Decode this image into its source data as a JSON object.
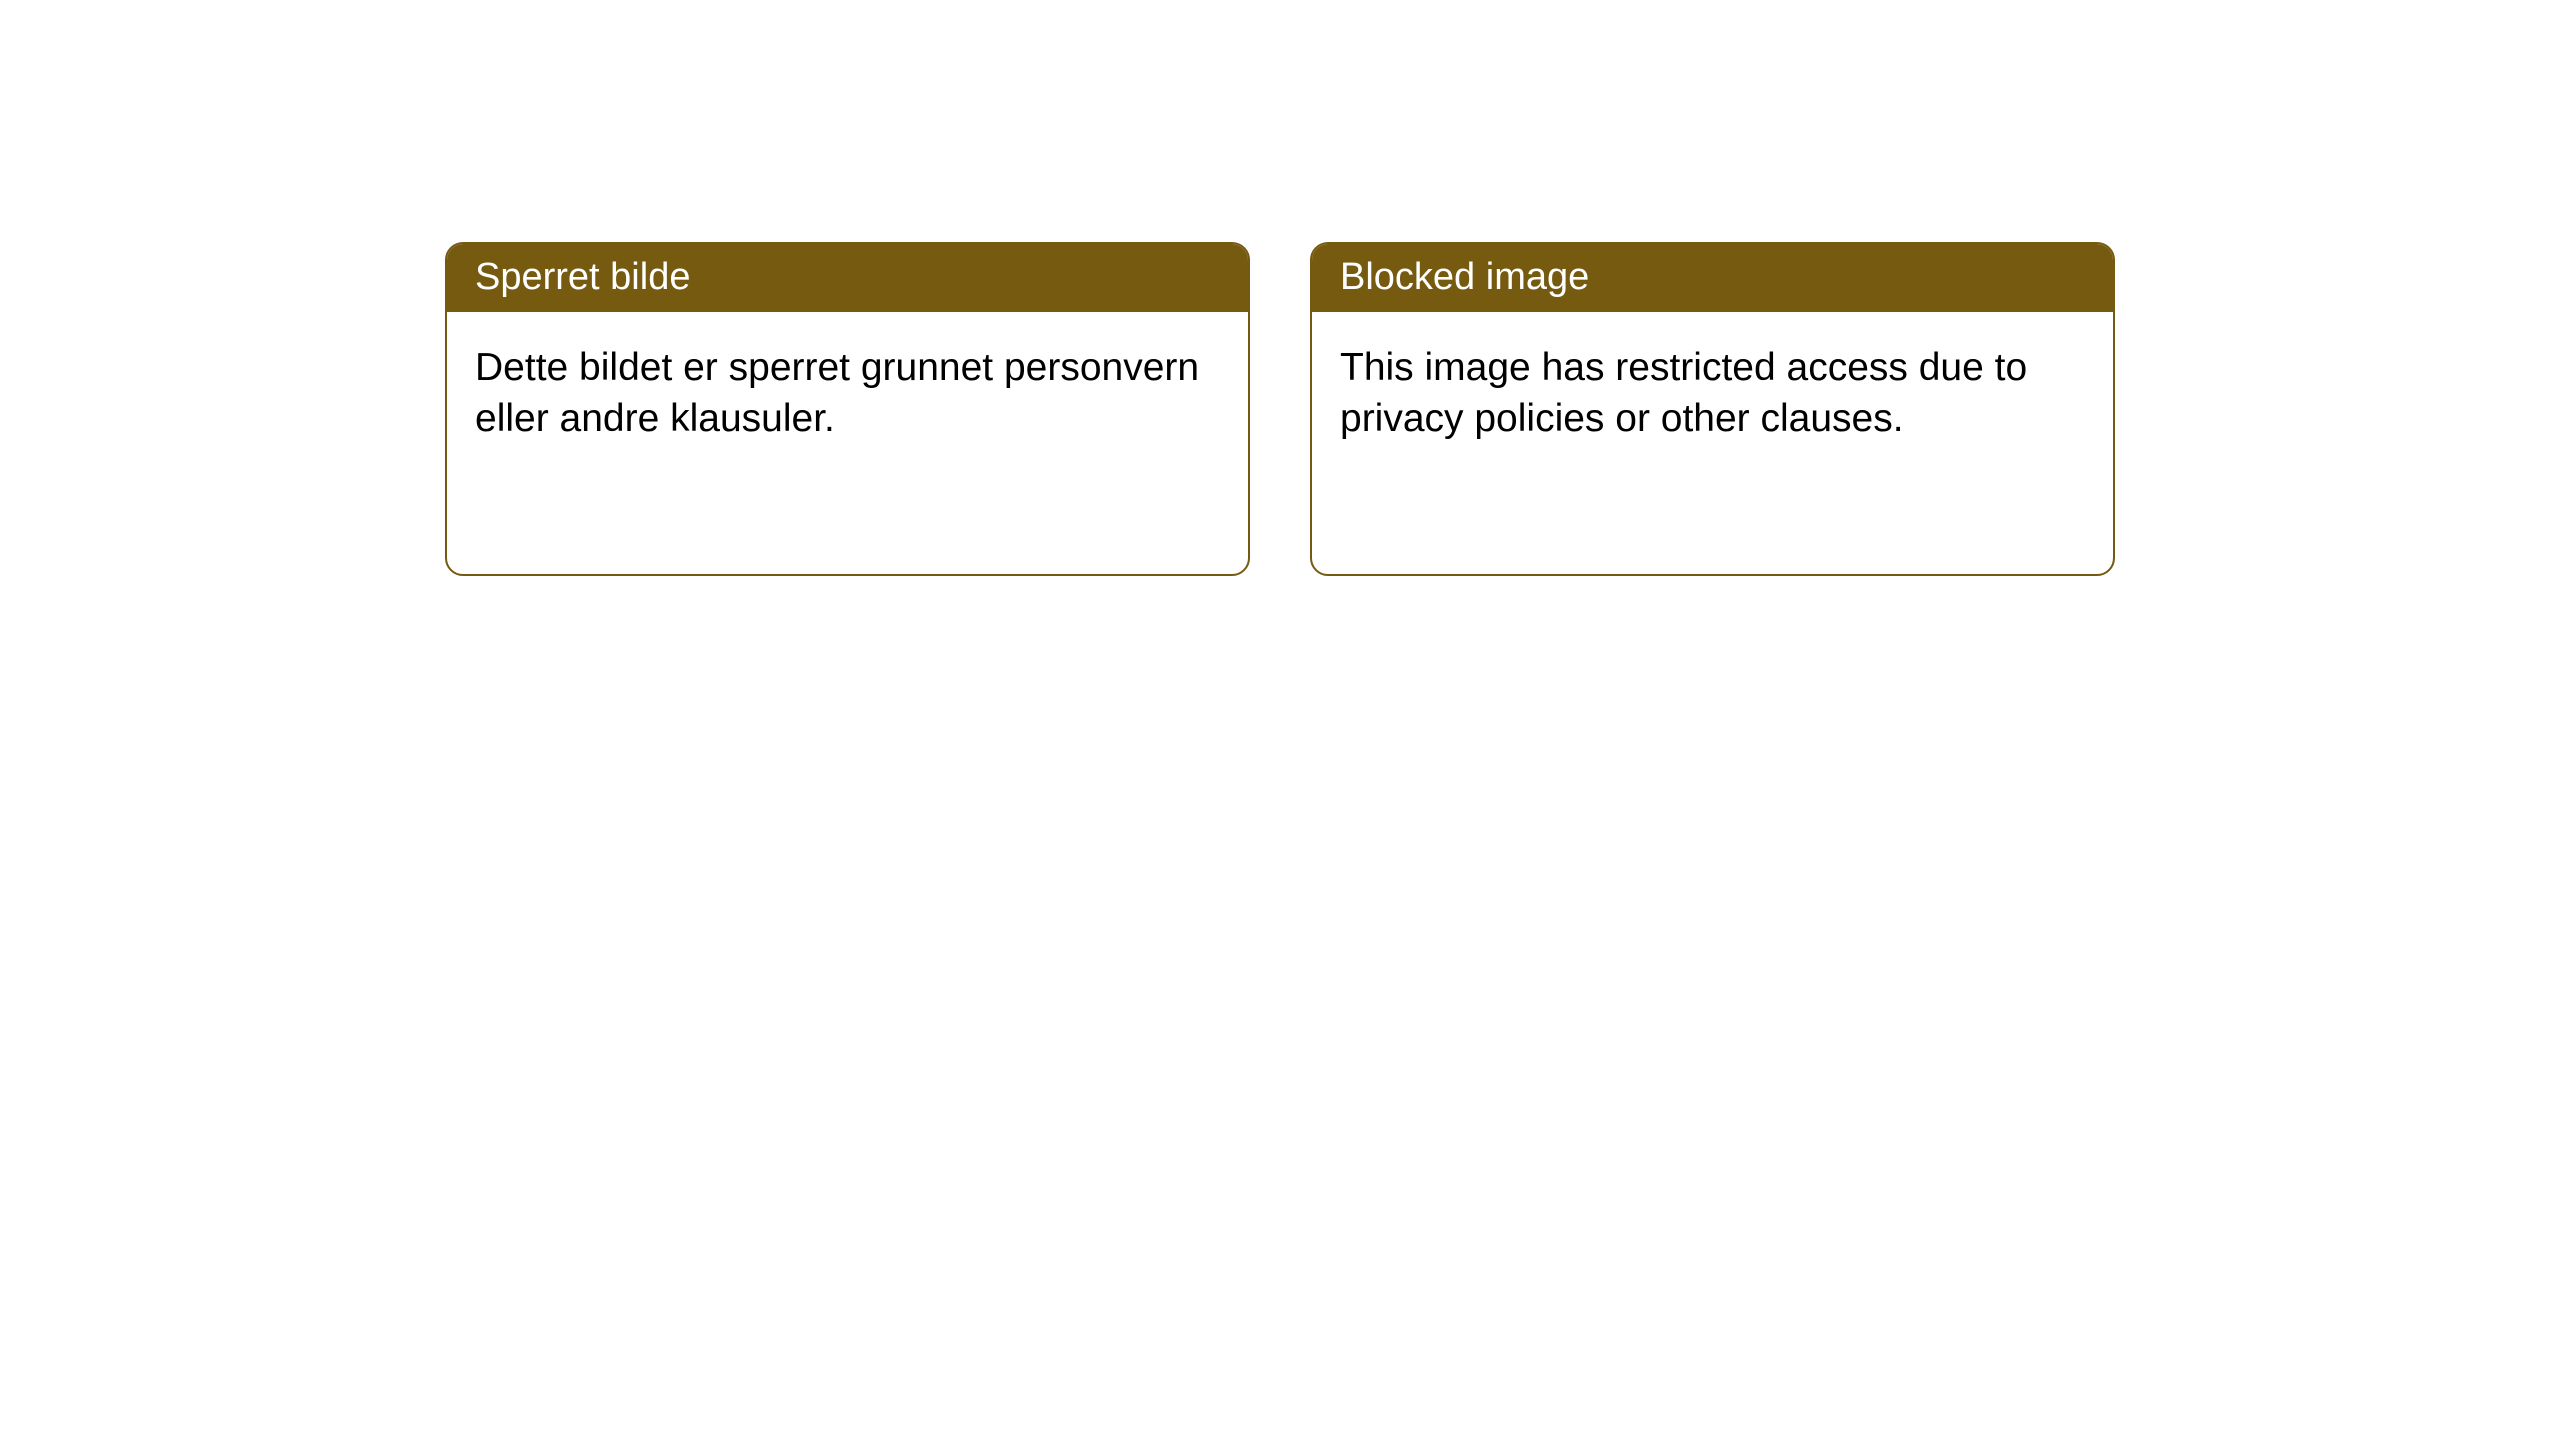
{
  "cards": [
    {
      "title": "Sperret bilde",
      "body": "Dette bildet er sperret grunnet personvern eller andre klausuler."
    },
    {
      "title": "Blocked image",
      "body": "This image has restricted access due to privacy policies or other clauses."
    }
  ],
  "styling": {
    "header_bg_color": "#755a10",
    "header_text_color": "#ffffff",
    "border_color": "#755a10",
    "body_text_color": "#000000",
    "card_bg_color": "#ffffff",
    "page_bg_color": "#ffffff",
    "header_fontsize": 38,
    "body_fontsize": 39,
    "border_radius": 18,
    "border_width": 2
  }
}
